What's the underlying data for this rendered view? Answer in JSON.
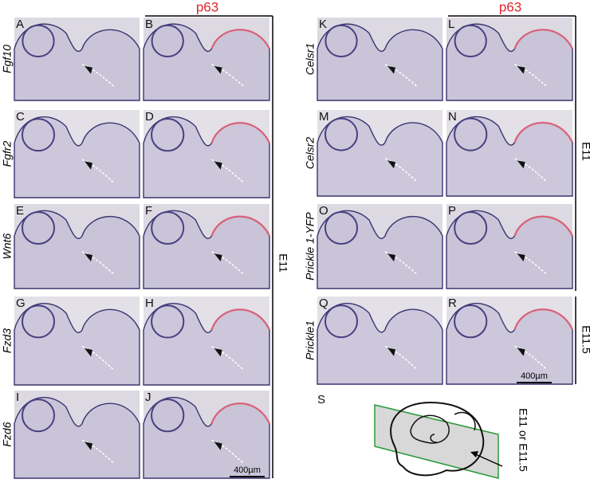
{
  "header": {
    "left_stain": "p63",
    "right_stain": "p63"
  },
  "left_panels": [
    {
      "letter": "A",
      "letter_stained": "B",
      "gene": "Fgf10"
    },
    {
      "letter": "C",
      "letter_stained": "D",
      "gene": "Fgfr2"
    },
    {
      "letter": "E",
      "letter_stained": "F",
      "gene": "Wnt6"
    },
    {
      "letter": "G",
      "letter_stained": "H",
      "gene": "Fzd3"
    },
    {
      "letter": "I",
      "letter_stained": "J",
      "gene": "Fzd6"
    }
  ],
  "right_panels": [
    {
      "letter": "K",
      "letter_stained": "L",
      "gene": "Celsr1"
    },
    {
      "letter": "M",
      "letter_stained": "N",
      "gene": "Celsr2"
    },
    {
      "letter": "O",
      "letter_stained": "P",
      "gene": "Prickle 1-YFP"
    },
    {
      "letter": "Q",
      "letter_stained": "R",
      "gene": "Prickle1"
    }
  ],
  "stages": {
    "left": "E11",
    "right_upper": "E11",
    "right_lower": "E11.5"
  },
  "scale_bars": {
    "left": "400µm",
    "right": "400µm"
  },
  "schematic": {
    "letter": "S",
    "label": "E11 or E11.5"
  }
}
